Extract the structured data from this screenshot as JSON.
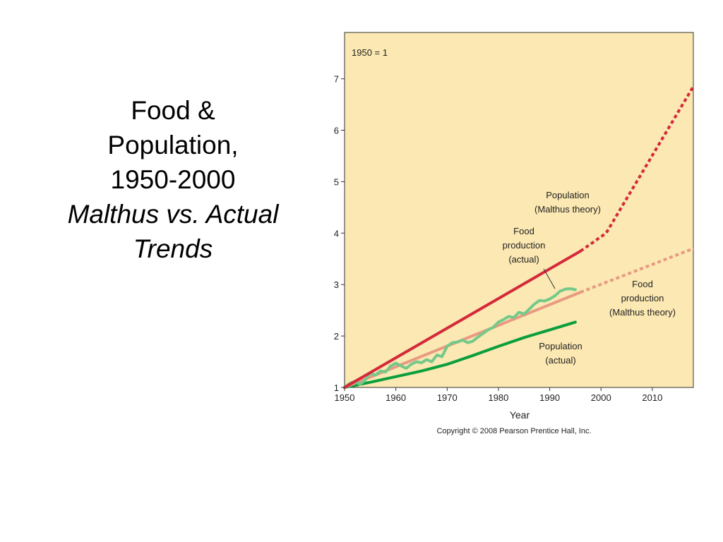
{
  "slide": {
    "title_lines": [
      "Food &",
      "Population,",
      "1950-2000"
    ],
    "subtitle_lines": [
      "Malthus vs. Actual",
      "Trends"
    ]
  },
  "chart_data": {
    "type": "line",
    "title": "",
    "note": "1950 = 1",
    "xlabel": "Year",
    "ylabel": "",
    "xlim": [
      1950,
      2018
    ],
    "ylim": [
      1,
      7.9
    ],
    "x_ticks": [
      1950,
      1960,
      1970,
      1980,
      1990,
      2000,
      2010
    ],
    "y_ticks": [
      1,
      2,
      3,
      4,
      5,
      6,
      7
    ],
    "grid": false,
    "background": "#fbe8b2",
    "copyright": "Copyright © 2008 Pearson Prentice Hall, Inc.",
    "series": [
      {
        "key": "population-malthus",
        "label_lines": [
          "Population",
          "(Malthus theory)"
        ],
        "color": "#d4293a",
        "solid": [
          [
            1950,
            1.0
          ],
          [
            1996,
            3.65
          ]
        ],
        "dotted": [
          [
            1996,
            3.65
          ],
          [
            2001,
            4.0
          ],
          [
            2018,
            6.85
          ]
        ]
      },
      {
        "key": "food-malthus",
        "label_lines": [
          "Food",
          "production",
          "(Malthus theory)"
        ],
        "color": "#e89a82",
        "solid": [
          [
            1950,
            1.0
          ],
          [
            1996,
            2.85
          ]
        ],
        "dotted": [
          [
            1996,
            2.85
          ],
          [
            2018,
            3.7
          ]
        ]
      },
      {
        "key": "food-actual",
        "label_lines": [
          "Food",
          "production",
          "(actual)"
        ],
        "color": "#74c98a",
        "solid": [
          [
            1950,
            1.0
          ],
          [
            1951,
            1.08
          ],
          [
            1952,
            1.12
          ],
          [
            1953,
            1.06
          ],
          [
            1954,
            1.14
          ],
          [
            1955,
            1.28
          ],
          [
            1956,
            1.24
          ],
          [
            1957,
            1.32
          ],
          [
            1958,
            1.3
          ],
          [
            1959,
            1.42
          ],
          [
            1960,
            1.47
          ],
          [
            1961,
            1.42
          ],
          [
            1962,
            1.37
          ],
          [
            1963,
            1.45
          ],
          [
            1964,
            1.5
          ],
          [
            1965,
            1.48
          ],
          [
            1966,
            1.54
          ],
          [
            1967,
            1.5
          ],
          [
            1968,
            1.63
          ],
          [
            1969,
            1.6
          ],
          [
            1970,
            1.8
          ],
          [
            1971,
            1.87
          ],
          [
            1972,
            1.88
          ],
          [
            1973,
            1.92
          ],
          [
            1974,
            1.87
          ],
          [
            1975,
            1.9
          ],
          [
            1976,
            1.98
          ],
          [
            1977,
            2.05
          ],
          [
            1978,
            2.12
          ],
          [
            1979,
            2.17
          ],
          [
            1980,
            2.27
          ],
          [
            1981,
            2.32
          ],
          [
            1982,
            2.38
          ],
          [
            1983,
            2.36
          ],
          [
            1984,
            2.46
          ],
          [
            1985,
            2.43
          ],
          [
            1986,
            2.52
          ],
          [
            1987,
            2.62
          ],
          [
            1988,
            2.69
          ],
          [
            1989,
            2.68
          ],
          [
            1990,
            2.72
          ],
          [
            1991,
            2.78
          ],
          [
            1992,
            2.87
          ],
          [
            1993,
            2.91
          ],
          [
            1994,
            2.92
          ],
          [
            1995,
            2.9
          ]
        ],
        "dotted": []
      },
      {
        "key": "population-actual",
        "label_lines": [
          "Population",
          "(actual)"
        ],
        "color": "#0a9e3c",
        "solid": [
          [
            1950,
            1.0
          ],
          [
            1955,
            1.1
          ],
          [
            1960,
            1.21
          ],
          [
            1965,
            1.32
          ],
          [
            1970,
            1.45
          ],
          [
            1975,
            1.62
          ],
          [
            1980,
            1.8
          ],
          [
            1985,
            1.97
          ],
          [
            1990,
            2.12
          ],
          [
            1995,
            2.27
          ]
        ],
        "dotted": []
      }
    ]
  }
}
